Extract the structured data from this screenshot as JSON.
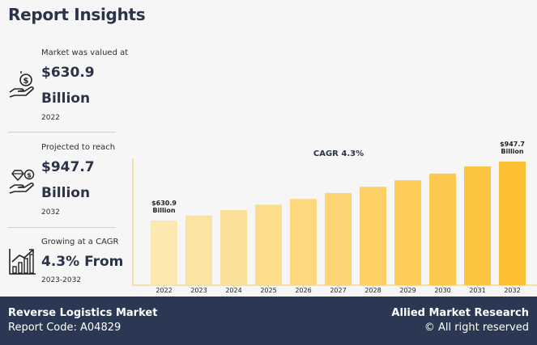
{
  "page": {
    "title": "Report Insights"
  },
  "stats": [
    {
      "label": "Market was valued at",
      "value": "$630.9",
      "value2": "Billion",
      "sub": "2022",
      "icon": "money-hand-icon"
    },
    {
      "label": "Projected to reach",
      "value": "$947.7",
      "value2": "Billion",
      "sub": "2032",
      "icon": "diamond-hand-icon"
    },
    {
      "label": "Growing at a CAGR",
      "value": "4.3% From",
      "value2": "",
      "sub": "2023-2032",
      "icon": "growth-chart-icon"
    }
  ],
  "chart_data": {
    "type": "bar",
    "title": "CAGR 4.3%",
    "categories": [
      "2022",
      "2023",
      "2024",
      "2025",
      "2026",
      "2027",
      "2028",
      "2029",
      "2030",
      "2031",
      "2032"
    ],
    "values": [
      630.9,
      658.0,
      686.3,
      715.8,
      746.6,
      778.7,
      812.2,
      847.1,
      883.5,
      921.5,
      947.7
    ],
    "data_labels": [
      {
        "index": 0,
        "lines": [
          "$630.9",
          "Billion"
        ]
      },
      {
        "index": 10,
        "lines": [
          "$947.7",
          "Billion"
        ]
      }
    ],
    "ylim": [
      0,
      1000
    ],
    "grid": false,
    "colors": [
      "#fde8b0",
      "#fde3a3",
      "#fde097",
      "#fddc8b",
      "#fdd87e",
      "#fdd472",
      "#fdd066",
      "#fdcc59",
      "#fdc84d",
      "#fdc440",
      "#fdc034"
    ]
  },
  "footer": {
    "report_name": "Reverse Logistics Market",
    "report_code": "Report Code: A04829",
    "brand": "Allied Market Research",
    "rights": "© All right reserved"
  }
}
